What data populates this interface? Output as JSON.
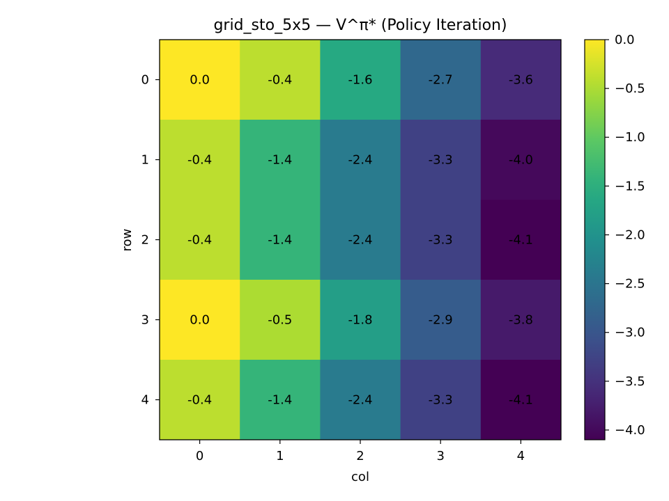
{
  "chart_data": {
    "type": "heatmap",
    "title": "grid_sto_5x5 — V^π* (Policy Iteration)",
    "xlabel": "col",
    "ylabel": "row",
    "x_ticks": [
      "0",
      "1",
      "2",
      "3",
      "4"
    ],
    "y_ticks": [
      "0",
      "1",
      "2",
      "3",
      "4"
    ],
    "values": [
      [
        0.0,
        -0.4,
        -1.6,
        -2.7,
        -3.6
      ],
      [
        -0.4,
        -1.4,
        -2.4,
        -3.3,
        -4.0
      ],
      [
        -0.4,
        -1.4,
        -2.4,
        -3.3,
        -4.1
      ],
      [
        0.0,
        -0.5,
        -1.8,
        -2.9,
        -3.8
      ],
      [
        -0.4,
        -1.4,
        -2.4,
        -3.3,
        -4.1
      ]
    ],
    "cell_labels": [
      [
        "0.0",
        "-0.4",
        "-1.6",
        "-2.7",
        "-3.6"
      ],
      [
        "-0.4",
        "-1.4",
        "-2.4",
        "-3.3",
        "-4.0"
      ],
      [
        "-0.4",
        "-1.4",
        "-2.4",
        "-3.3",
        "-4.1"
      ],
      [
        "0.0",
        "-0.5",
        "-1.8",
        "-2.9",
        "-3.8"
      ],
      [
        "-0.4",
        "-1.4",
        "-2.4",
        "-3.3",
        "-4.1"
      ]
    ],
    "colorbar": {
      "vmin": -4.1,
      "vmax": 0.0,
      "ticks": [
        0.0,
        -0.5,
        -1.0,
        -1.5,
        -2.0,
        -2.5,
        -3.0,
        -3.5,
        -4.0
      ],
      "tick_labels": [
        "0.0",
        "−0.5",
        "−1.0",
        "−1.5",
        "−2.0",
        "−2.5",
        "−3.0",
        "−3.5",
        "−4.0"
      ],
      "colormap": "viridis"
    },
    "grid": false
  }
}
